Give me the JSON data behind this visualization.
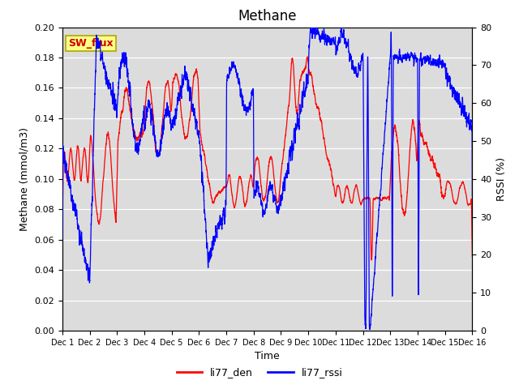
{
  "title": "Methane",
  "ylabel_left": "Methane (mmol/m3)",
  "ylabel_right": "RSSI (%)",
  "xlabel": "Time",
  "ylim_left": [
    0.0,
    0.2
  ],
  "ylim_right": [
    0,
    80
  ],
  "yticks_left": [
    0.0,
    0.02,
    0.04,
    0.06,
    0.08,
    0.1,
    0.12,
    0.14,
    0.16,
    0.18,
    0.2
  ],
  "yticks_right": [
    0,
    10,
    20,
    30,
    40,
    50,
    60,
    70,
    80
  ],
  "color_red": "#ff0000",
  "color_blue": "#0000ff",
  "legend_label1": "li77_den",
  "legend_label2": "li77_rssi",
  "sw_flux_label": "SW_flux",
  "bg_color": "#dcdcdc",
  "fig_bg_color": "#ffffff",
  "title_fontsize": 12,
  "axis_fontsize": 9,
  "tick_fontsize": 8,
  "linewidth": 0.9
}
